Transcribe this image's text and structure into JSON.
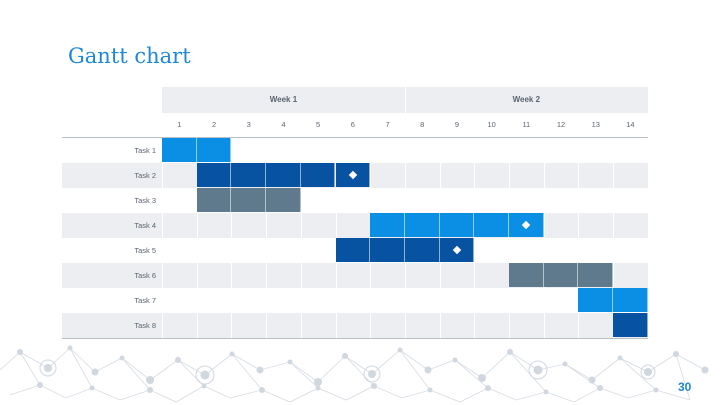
{
  "title": "Gantt chart",
  "page_number": "30",
  "weeks": [
    "Week 1",
    "Week 2"
  ],
  "days": [
    "1",
    "2",
    "3",
    "4",
    "5",
    "6",
    "7",
    "8",
    "9",
    "10",
    "11",
    "12",
    "13",
    "14"
  ],
  "colors": {
    "accent": "#1e88d6",
    "bright_blue": "#0a8fe4",
    "dark_blue": "#0752a1",
    "slate": "#5f7a8c",
    "row_alt": "#eceef1",
    "grid_line": "#b9c1cb"
  },
  "chart_data": {
    "type": "gantt",
    "title": "Gantt chart",
    "x_unit": "day",
    "x_ticks": [
      1,
      2,
      3,
      4,
      5,
      6,
      7,
      8,
      9,
      10,
      11,
      12,
      13,
      14
    ],
    "groups": [
      "Week 1",
      "Week 2"
    ],
    "tasks": [
      {
        "name": "Task 1",
        "start_day": 1,
        "end_day": 2,
        "color": "#0a8fe4",
        "milestone_day": null
      },
      {
        "name": "Task 2",
        "start_day": 2,
        "end_day": 6,
        "color": "#0752a1",
        "milestone_day": 6
      },
      {
        "name": "Task 3",
        "start_day": 2,
        "end_day": 4,
        "color": "#5f7a8c",
        "milestone_day": null
      },
      {
        "name": "Task 4",
        "start_day": 7,
        "end_day": 11,
        "color": "#0a8fe4",
        "milestone_day": 11
      },
      {
        "name": "Task 5",
        "start_day": 6,
        "end_day": 9,
        "color": "#0752a1",
        "milestone_day": 9
      },
      {
        "name": "Task 6",
        "start_day": 11,
        "end_day": 13,
        "color": "#5f7a8c",
        "milestone_day": null
      },
      {
        "name": "Task 7",
        "start_day": 13,
        "end_day": 14,
        "color": "#0a8fe4",
        "milestone_day": null
      },
      {
        "name": "Task 8",
        "start_day": 14,
        "end_day": 14,
        "color": "#0752a1",
        "milestone_day": null
      }
    ]
  }
}
